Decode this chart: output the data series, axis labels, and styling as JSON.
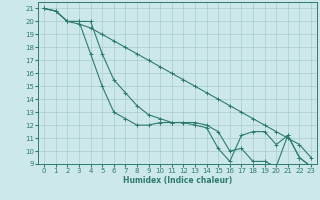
{
  "xlabel": "Humidex (Indice chaleur)",
  "bg_color": "#cce8e8",
  "grid_color": "#aacccc",
  "line_color": "#2e7b6e",
  "xlim": [
    -0.5,
    23.5
  ],
  "ylim": [
    9,
    21.5
  ],
  "xticks": [
    0,
    1,
    2,
    3,
    4,
    5,
    6,
    7,
    8,
    9,
    10,
    11,
    12,
    13,
    14,
    15,
    16,
    17,
    18,
    19,
    20,
    21,
    22,
    23
  ],
  "yticks": [
    9,
    10,
    11,
    12,
    13,
    14,
    15,
    16,
    17,
    18,
    19,
    20,
    21
  ],
  "line1_x": [
    0,
    1,
    2,
    3,
    4,
    5,
    6,
    7,
    8,
    9,
    10,
    11,
    12,
    13,
    14,
    15,
    16,
    17,
    18,
    19,
    20,
    21,
    22,
    23
  ],
  "line1_y": [
    21,
    20.8,
    20,
    20,
    17.5,
    15,
    13,
    12.5,
    12,
    12,
    12.2,
    12.2,
    12.2,
    12,
    11.8,
    10.2,
    9.2,
    11.2,
    11.5,
    11.5,
    10.5,
    11.2,
    9.5,
    8.8
  ],
  "line2_x": [
    0,
    1,
    2,
    3,
    4,
    5,
    6,
    7,
    8,
    9,
    10,
    11,
    12,
    13,
    14,
    15,
    16,
    17,
    18,
    19,
    20,
    21,
    22,
    23
  ],
  "line2_y": [
    21,
    20.8,
    20,
    20,
    20,
    17.5,
    15.5,
    14.5,
    13.5,
    12.8,
    12.5,
    12.2,
    12.2,
    12.2,
    12,
    11.5,
    10,
    10.2,
    9.2,
    9.2,
    8.8,
    11.2,
    9.5,
    8.8
  ],
  "line3_x": [
    0,
    1,
    2,
    3,
    4,
    5,
    6,
    7,
    8,
    9,
    10,
    11,
    12,
    13,
    14,
    15,
    16,
    17,
    18,
    19,
    20,
    21,
    22,
    23
  ],
  "line3_y": [
    21,
    20.8,
    20,
    19.8,
    19.5,
    19,
    18.5,
    18,
    17.5,
    17,
    16.5,
    16,
    15.5,
    15,
    14.5,
    14,
    13.5,
    13,
    12.5,
    12,
    11.5,
    11,
    10.5,
    9.5
  ]
}
